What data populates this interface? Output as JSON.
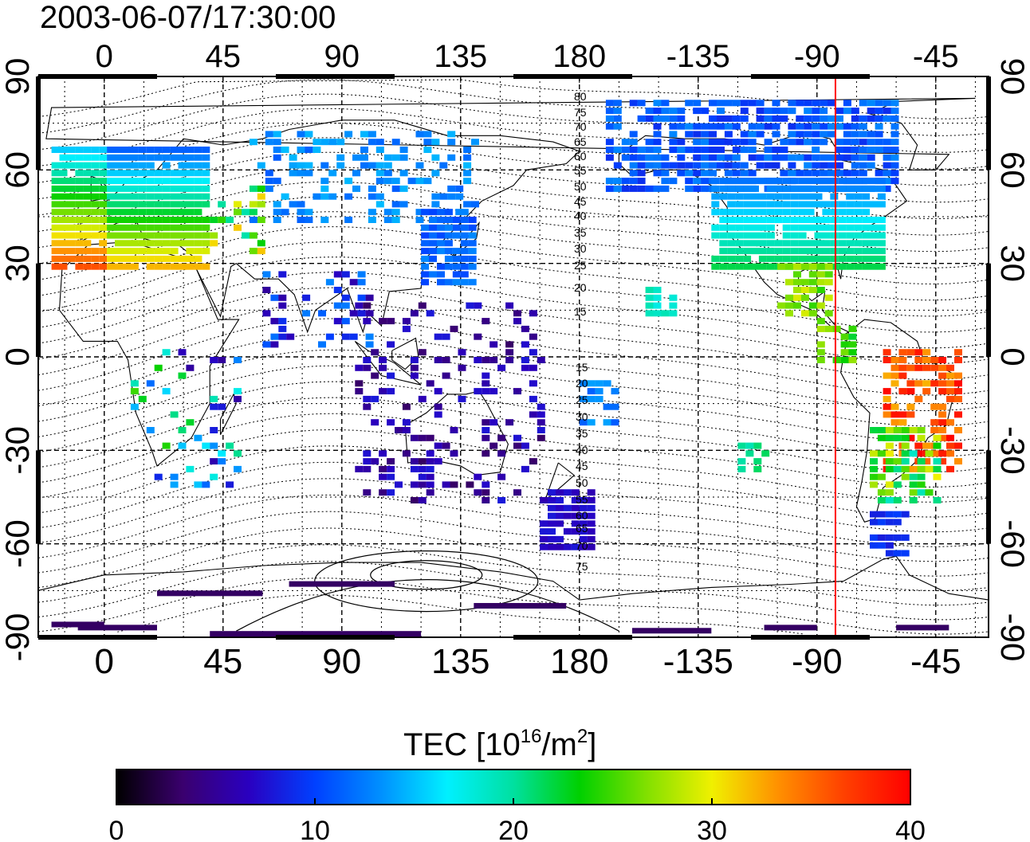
{
  "title": "2003-06-07/17:30:00",
  "map": {
    "lon_ticks": [
      "0",
      "45",
      "90",
      "135",
      "180",
      "-135",
      "-90",
      "-45"
    ],
    "lat_ticks": [
      "90",
      "60",
      "30",
      "0",
      "-30",
      "-60",
      "-90"
    ],
    "contour_labels_north": [
      "80",
      "75",
      "70",
      "65",
      "60",
      "55",
      "50",
      "45",
      "40",
      "35",
      "30",
      "25",
      "20",
      "15"
    ],
    "contour_labels_south": [
      "15",
      "20",
      "25",
      "30",
      "35",
      "40",
      "45",
      "50",
      "55",
      "60",
      "65",
      "70",
      "75"
    ],
    "marker_line_longitude": -83,
    "marker_line_color": "#ff0000"
  },
  "colorbar": {
    "label_main": "TEC  [10",
    "label_sup1": "16",
    "label_mid": "/m",
    "label_sup2": "2",
    "label_end": "]",
    "ticks": [
      "0",
      "10",
      "20",
      "30",
      "40"
    ],
    "min": 0,
    "max": 40,
    "colors": [
      "#000000",
      "#3a006e",
      "#2a00c0",
      "#0040ff",
      "#0090ff",
      "#00f0ff",
      "#00e0a0",
      "#00d000",
      "#80e000",
      "#f0f000",
      "#ff9000",
      "#ff4000",
      "#ff0000"
    ]
  }
}
